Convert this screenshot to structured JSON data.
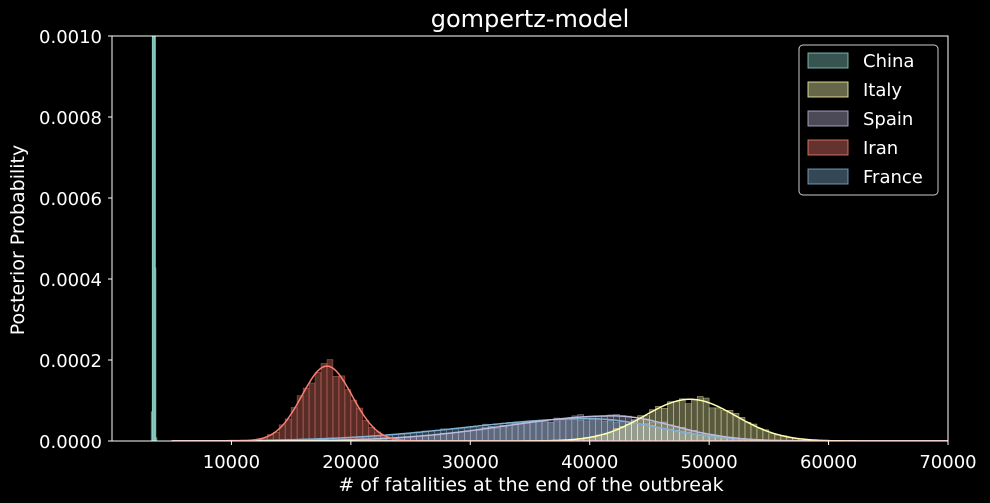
{
  "chart_data": {
    "type": "histogram-kde",
    "title": "gompertz-model",
    "xlabel": "# of fatalities at the end of the outbreak",
    "ylabel": "Posterior Probability",
    "xlim": [
      0,
      70000
    ],
    "ylim": [
      0,
      0.001
    ],
    "xticks": [
      10000,
      20000,
      30000,
      40000,
      50000,
      60000,
      70000
    ],
    "xtick_labels": [
      "10000",
      "20000",
      "30000",
      "40000",
      "50000",
      "60000",
      "70000"
    ],
    "yticks": [
      0,
      0.0002,
      0.0004,
      0.0006,
      0.0008,
      0.001
    ],
    "ytick_labels": [
      "0.0000",
      "0.0002",
      "0.0004",
      "0.0006",
      "0.0008",
      "0.0010"
    ],
    "grid": false,
    "legend_position": "top-right",
    "bin_width": 500,
    "series": [
      {
        "name": "China",
        "color": "#8dd3c7",
        "dist": "normal",
        "mean": 3500,
        "sd": 60,
        "peak": 0.0065,
        "range": [
          3200,
          3800
        ]
      },
      {
        "name": "Italy",
        "color": "#ffffb3",
        "dist": "normal",
        "mean": 48400,
        "sd": 3800,
        "peak": 0.000103,
        "range": [
          34000,
          70000
        ]
      },
      {
        "name": "Spain",
        "color": "#bebada",
        "dist": "skewnormal",
        "mean": 42000,
        "sd": 9000,
        "peak": 6.2e-05,
        "range": [
          5000,
          70000
        ]
      },
      {
        "name": "Iran",
        "color": "#fb8072",
        "dist": "normal",
        "mean": 18000,
        "sd": 2100,
        "peak": 0.000185,
        "range": [
          9000,
          23000
        ]
      },
      {
        "name": "France",
        "color": "#80b1d3",
        "dist": "skewnormal",
        "mean": 40000,
        "sd": 10500,
        "peak": 5.5e-05,
        "range": [
          5000,
          70000
        ]
      }
    ]
  }
}
